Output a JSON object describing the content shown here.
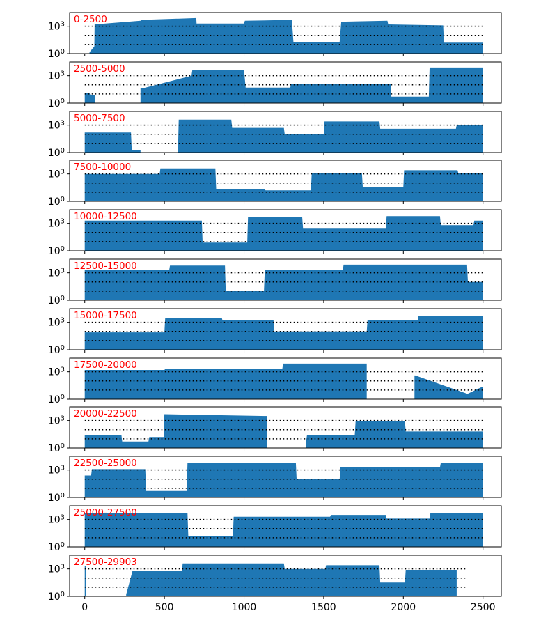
{
  "chart_data": {
    "type": "area",
    "description_scale": "log",
    "color": "#1f77b4",
    "reference_line_color": "#000000",
    "panel_label_color": "#ff0000",
    "x_ticks": [
      0,
      500,
      1000,
      1500,
      2000,
      2500
    ],
    "x_tick_labels": [
      "0",
      "500",
      "1000",
      "1500",
      "2000",
      "2500"
    ],
    "xlim": [
      -95,
      2615
    ],
    "y_tick_labels": [
      "10^0",
      "10^3"
    ],
    "y_tick_values": [
      1,
      1000
    ],
    "ylim_log10": [
      0,
      4.5
    ],
    "reference_lines_log10": [
      1,
      2,
      3
    ],
    "panels": [
      {
        "label": "0-2500",
        "line_extent": [
          0,
          2500
        ],
        "segments": [
          {
            "x": [
              30,
              60,
              62,
              350,
              355,
              700,
              702,
              1000,
              1005,
              1300,
              1310,
              1600,
              1610,
              1900,
              1905,
              2250,
              2255,
              2500
            ],
            "y": [
              0.15,
              0.8,
              3.2,
              3.6,
              3.7,
              3.9,
              3.3,
              3.3,
              3.6,
              3.7,
              1.3,
              1.3,
              3.5,
              3.6,
              3.2,
              3.1,
              1.2,
              1.2
            ]
          }
        ]
      },
      {
        "label": "2500-5000",
        "line_extent": [
          0,
          2500
        ],
        "segments": [
          {
            "x": [
              0,
              30,
              35,
              65
            ],
            "y": [
              1.1,
              1.1,
              0.9,
              0.9
            ]
          },
          {
            "x": [
              350,
              360,
              670,
              675,
              1000,
              1010,
              1290,
              1295,
              1920,
              1925,
              2160,
              2165,
              2500
            ],
            "y": [
              1.6,
              1.6,
              3.0,
              3.6,
              3.6,
              1.7,
              1.7,
              2.1,
              2.1,
              0.7,
              0.7,
              3.9,
              3.9
            ]
          }
        ]
      },
      {
        "label": "5000-7500",
        "line_extent": [
          0,
          2500
        ],
        "segments": [
          {
            "x": [
              0,
              290,
              295,
              350
            ],
            "y": [
              2.2,
              2.2,
              0.3,
              0.3
            ]
          },
          {
            "x": [
              585,
              590,
              920,
              925,
              1250,
              1255,
              1500,
              1505,
              1850,
              1855,
              2330,
              2335,
              2500
            ],
            "y": [
              0.1,
              3.6,
              3.6,
              2.7,
              2.7,
              2.0,
              2.0,
              3.4,
              3.4,
              2.6,
              2.6,
              3.0,
              3.0
            ]
          }
        ]
      },
      {
        "label": "7500-10000",
        "line_extent": [
          0,
          2500
        ],
        "segments": [
          {
            "x": [
              0,
              470,
              475,
              820,
              825,
              1130,
              1135,
              1420,
              1425,
              1740,
              1745,
              2000,
              2005,
              2340,
              2345,
              2500
            ],
            "y": [
              3.0,
              3.0,
              3.6,
              3.6,
              1.3,
              1.3,
              1.2,
              1.2,
              3.1,
              3.1,
              1.6,
              1.6,
              3.4,
              3.4,
              3.1,
              3.1
            ]
          }
        ]
      },
      {
        "label": "10000-12500",
        "line_extent": [
          0,
          2500
        ],
        "segments": [
          {
            "x": [
              0,
              735,
              740,
              1020,
              1025,
              1365,
              1370,
              1890,
              1895,
              2230,
              2235,
              2440,
              2445,
              2500
            ],
            "y": [
              3.3,
              3.3,
              0.9,
              0.9,
              3.7,
              3.7,
              2.5,
              2.5,
              3.8,
              3.8,
              2.8,
              2.8,
              3.3,
              3.3
            ]
          }
        ]
      },
      {
        "label": "12500-15000",
        "line_extent": [
          0,
          2500
        ],
        "segments": [
          {
            "x": [
              0,
              530,
              535,
              880,
              885,
              1125,
              1130,
              1620,
              1625,
              2400,
              2405,
              2500
            ],
            "y": [
              3.3,
              3.3,
              3.8,
              3.8,
              1.0,
              1.0,
              3.3,
              3.3,
              3.9,
              3.9,
              2.0,
              2.0
            ]
          }
        ]
      },
      {
        "label": "15000-17500",
        "line_extent": [
          0,
          2500
        ],
        "segments": [
          {
            "x": [
              0,
              500,
              505,
              860,
              865,
              1185,
              1190,
              1770,
              1775,
              2090,
              2095,
              2500
            ],
            "y": [
              1.9,
              1.9,
              3.5,
              3.5,
              3.2,
              3.2,
              2.0,
              2.0,
              3.2,
              3.2,
              3.7,
              3.7
            ]
          }
        ]
      },
      {
        "label": "17500-20000",
        "line_extent": [
          0,
          2500
        ],
        "segments": [
          {
            "x": [
              0,
              500,
              505,
              1240,
              1245,
              1770
            ],
            "y": [
              3.2,
              3.2,
              3.3,
              3.3,
              3.9,
              3.9
            ]
          },
          {
            "x": [
              2070,
              2075,
              2400,
              2405,
              2500
            ],
            "y": [
              2.6,
              2.6,
              0.6,
              0.6,
              1.4
            ]
          }
        ]
      },
      {
        "label": "20000-22500",
        "line_extent": [
          0,
          2500
        ],
        "segments": [
          {
            "x": [
              0,
              230,
              235,
              400,
              405,
              495,
              500,
              1145
            ],
            "y": [
              1.4,
              1.4,
              0.7,
              0.7,
              1.2,
              1.2,
              3.7,
              3.5
            ]
          },
          {
            "x": [
              1390,
              1395,
              1695,
              1700,
              2010,
              2015,
              2500
            ],
            "y": [
              0.8,
              1.4,
              1.4,
              2.9,
              2.9,
              1.8,
              1.8
            ]
          }
        ]
      },
      {
        "label": "22500-25000",
        "line_extent": [
          0,
          2500
        ],
        "segments": [
          {
            "x": [
              0,
              40,
              45,
              380,
              385,
              640,
              645,
              1325,
              1330,
              1600,
              1605,
              2230,
              2235,
              2500
            ],
            "y": [
              2.4,
              2.4,
              3.1,
              3.1,
              0.7,
              0.7,
              3.8,
              3.8,
              2.0,
              2.0,
              3.3,
              3.3,
              3.8,
              3.8
            ]
          }
        ]
      },
      {
        "label": "25000-27500",
        "line_extent": [
          0,
          2500
        ],
        "segments": [
          {
            "x": [
              0,
              645,
              650,
              930,
              935,
              1540,
              1545,
              1890,
              1895,
              2165,
              2170,
              2500
            ],
            "y": [
              3.7,
              3.7,
              1.2,
              1.2,
              3.3,
              3.3,
              3.5,
              3.5,
              3.1,
              3.1,
              3.7,
              3.7
            ]
          }
        ]
      },
      {
        "label": "27500-29903",
        "line_extent": [
          0,
          2400
        ],
        "segments": [
          {
            "x": [
              0,
              8
            ],
            "y": [
              3.3,
              3.3
            ]
          },
          {
            "x": [
              260,
              300,
              305,
              610,
              615,
              1250,
              1255,
              1510,
              1515,
              1850,
              1855,
              2010,
              2015,
              2335
            ],
            "y": [
              0.2,
              2.8,
              2.8,
              2.8,
              3.6,
              3.6,
              3.0,
              3.0,
              3.4,
              3.4,
              1.5,
              1.5,
              2.9,
              2.9
            ]
          }
        ]
      }
    ]
  }
}
